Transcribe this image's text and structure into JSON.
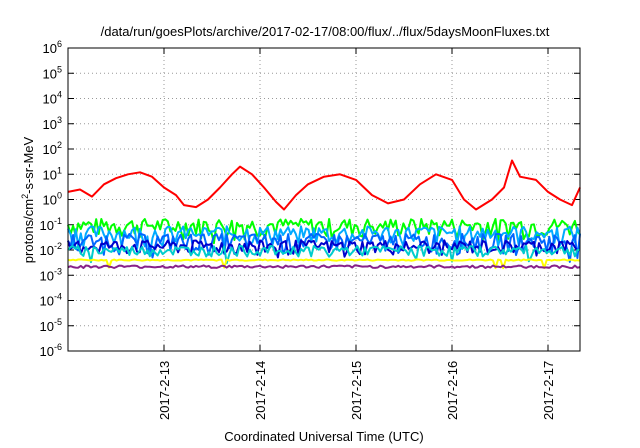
{
  "chart_data": {
    "type": "line",
    "title": "/data/run/goesPlots/archive/2017-02-17/08:00/flux/../flux/5daysMoonFluxes.txt",
    "xlabel": "Coordinated Universal Time (UTC)",
    "ylabel": {
      "base": "protons/cm",
      "sup": "2",
      "rest": "-s-sr-MeV"
    },
    "y_scale": "log",
    "ylim": [
      1e-06,
      1000000.0
    ],
    "y_ticks": [
      {
        "base": "10",
        "exp": "6"
      },
      {
        "base": "10",
        "exp": "5"
      },
      {
        "base": "10",
        "exp": "4"
      },
      {
        "base": "10",
        "exp": "3"
      },
      {
        "base": "10",
        "exp": "2"
      },
      {
        "base": "10",
        "exp": "1"
      },
      {
        "base": "10",
        "exp": "0"
      },
      {
        "base": "10",
        "exp": "-1"
      },
      {
        "base": "10",
        "exp": "-2"
      },
      {
        "base": "10",
        "exp": "-3"
      },
      {
        "base": "10",
        "exp": "-4"
      },
      {
        "base": "10",
        "exp": "-5"
      },
      {
        "base": "10",
        "exp": "-6"
      }
    ],
    "xlim": [
      "2017-02-12T00:00",
      "2017-02-17T08:00"
    ],
    "x_ticks": [
      "2017-2-13",
      "2017-2-14",
      "2017-2-15",
      "2017-2-16",
      "2017-2-17"
    ],
    "grid": true,
    "legend": "none",
    "series": [
      {
        "color": "#ff0000",
        "points": [
          [
            "2017-02-12T00:00",
            2.0
          ],
          [
            "2017-02-12T03:00",
            2.5
          ],
          [
            "2017-02-12T06:00",
            1.3
          ],
          [
            "2017-02-12T09:00",
            4.0
          ],
          [
            "2017-02-12T12:00",
            7.0
          ],
          [
            "2017-02-12T15:00",
            10.0
          ],
          [
            "2017-02-12T18:00",
            12.0
          ],
          [
            "2017-02-12T21:00",
            8.0
          ],
          [
            "2017-02-13T00:00",
            3.0
          ],
          [
            "2017-02-13T03:00",
            1.5
          ],
          [
            "2017-02-13T05:00",
            0.6
          ],
          [
            "2017-02-13T08:00",
            0.5
          ],
          [
            "2017-02-13T11:00",
            1.0
          ],
          [
            "2017-02-13T14:00",
            3.0
          ],
          [
            "2017-02-13T17:00",
            10.0
          ],
          [
            "2017-02-13T19:00",
            20.0
          ],
          [
            "2017-02-13T22:00",
            10.0
          ],
          [
            "2017-02-14T01:00",
            3.0
          ],
          [
            "2017-02-14T04:00",
            0.8
          ],
          [
            "2017-02-14T06:00",
            0.4
          ],
          [
            "2017-02-14T09:00",
            1.5
          ],
          [
            "2017-02-14T12:00",
            4.0
          ],
          [
            "2017-02-14T16:00",
            8.0
          ],
          [
            "2017-02-14T20:00",
            10.0
          ],
          [
            "2017-02-15T00:00",
            6.0
          ],
          [
            "2017-02-15T04:00",
            1.5
          ],
          [
            "2017-02-15T08:00",
            0.7
          ],
          [
            "2017-02-15T12:00",
            1.0
          ],
          [
            "2017-02-15T16:00",
            4.0
          ],
          [
            "2017-02-15T20:00",
            10.0
          ],
          [
            "2017-02-16T00:00",
            6.0
          ],
          [
            "2017-02-16T03:00",
            1.0
          ],
          [
            "2017-02-16T06:00",
            0.4
          ],
          [
            "2017-02-16T10:00",
            1.0
          ],
          [
            "2017-02-16T13:00",
            3.0
          ],
          [
            "2017-02-16T15:00",
            35.0
          ],
          [
            "2017-02-16T17:00",
            8.0
          ],
          [
            "2017-02-16T21:00",
            6.0
          ],
          [
            "2017-02-17T00:00",
            2.0
          ],
          [
            "2017-02-17T03:00",
            1.0
          ],
          [
            "2017-02-17T06:00",
            0.6
          ],
          [
            "2017-02-17T08:00",
            3.0
          ]
        ]
      },
      {
        "color": "#00ff00",
        "level": 0.1,
        "jitter": 0.25
      },
      {
        "color": "#00aaff",
        "level": 0.05,
        "jitter": 0.25
      },
      {
        "color": "#0066ff",
        "level": 0.025,
        "jitter": 0.25
      },
      {
        "color": "#0000cc",
        "level": 0.015,
        "jitter": 0.2
      },
      {
        "color": "#00cccc",
        "level": 0.01,
        "jitter": 0.15
      },
      {
        "color": "#ffff00",
        "level": 0.004,
        "jitter": 0.02
      },
      {
        "color": "#882288",
        "level": 0.0022,
        "jitter": 0.04
      }
    ]
  }
}
